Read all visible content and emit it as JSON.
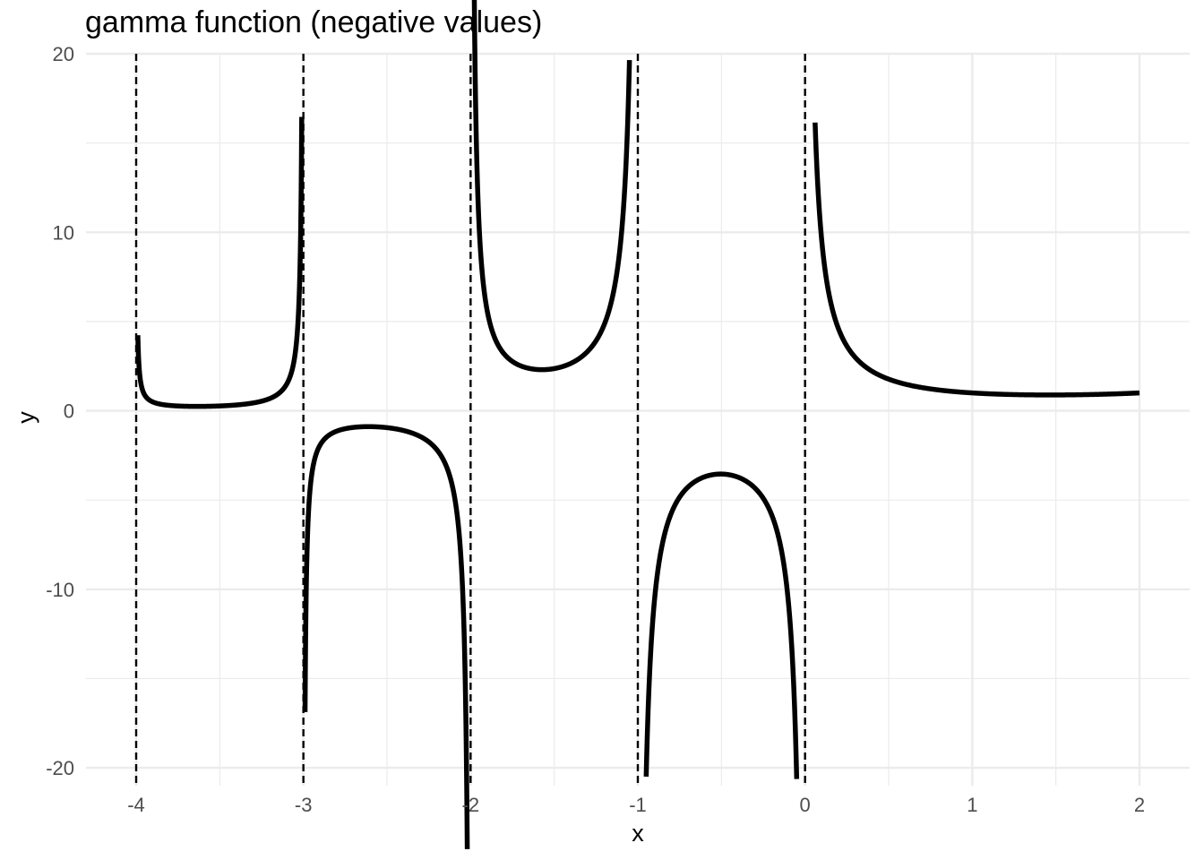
{
  "chart_data": {
    "type": "line",
    "title": "gamma function (negative values)",
    "xlabel": "x",
    "ylabel": "y",
    "xlim": [
      -4.3,
      2.3
    ],
    "ylim": [
      -21.0,
      20.0
    ],
    "x_ticks": [
      -4,
      -3,
      -2,
      -1,
      0,
      1,
      2
    ],
    "x_tick_labels": [
      "-4",
      "-3",
      "-2",
      "-1",
      "0",
      "1",
      "2"
    ],
    "y_ticks": [
      -20,
      -10,
      0,
      10,
      20
    ],
    "y_tick_labels": [
      "-20",
      "-10",
      "0",
      "10",
      "20"
    ],
    "x_minor_ticks": [
      -3.5,
      -2.5,
      -1.5,
      -0.5,
      0.5,
      1.5
    ],
    "y_minor_ticks": [
      -15,
      -5,
      5,
      15
    ],
    "vlines": [
      -4,
      -3,
      -2,
      -1,
      0
    ],
    "vline_style": "dashed",
    "line_color": "#000000",
    "grid": true,
    "legend": "none",
    "function": "gamma",
    "series": [
      {
        "x_range": [
          -3.99,
          -3.01
        ]
      },
      {
        "x_range": [
          -2.99,
          -2.02
        ]
      },
      {
        "x_range": [
          -1.98,
          -1.05
        ]
      },
      {
        "x_range": [
          -0.95,
          -0.05
        ]
      },
      {
        "x_range": [
          0.06,
          2.0
        ]
      }
    ]
  }
}
